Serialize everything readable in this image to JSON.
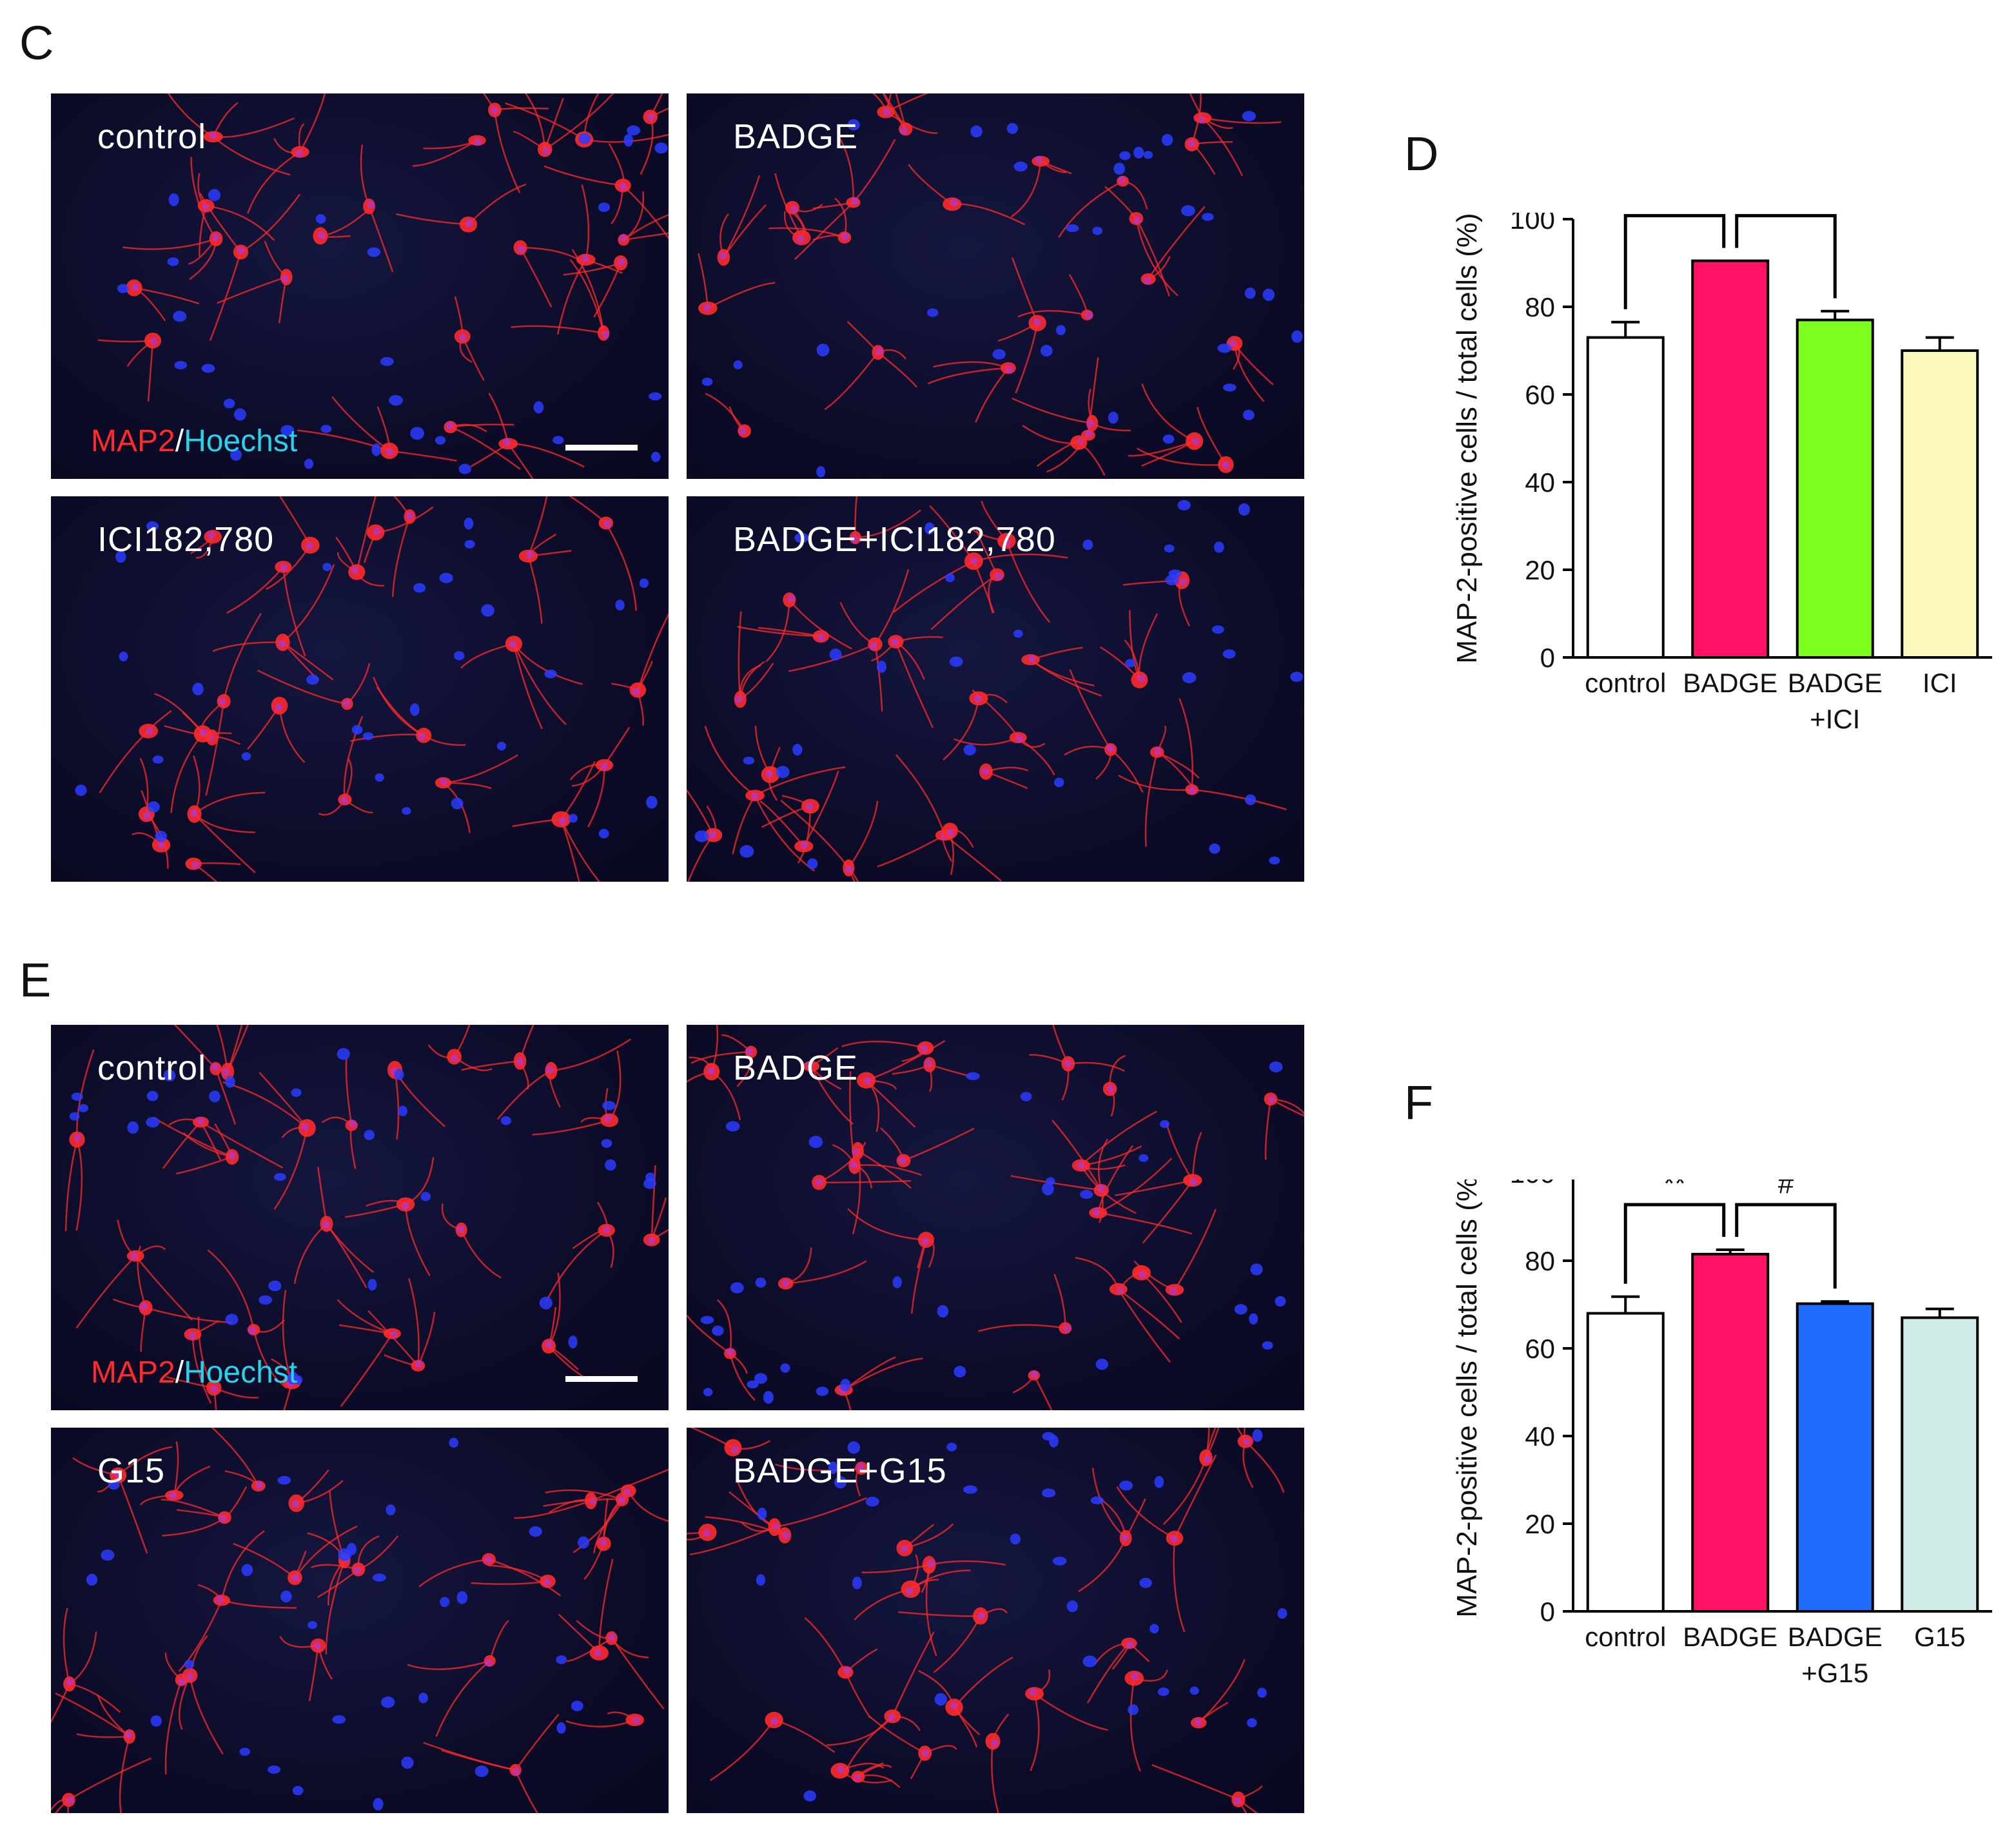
{
  "panel_letters": {
    "C": "C",
    "D": "D",
    "E": "E",
    "F": "F"
  },
  "colors": {
    "background": "#ffffff",
    "micro_background": "#0c0c2a",
    "map2_red": "#ff2a2a",
    "hoechst_blue": "#2a3cff",
    "hoechst_label_cyan": "#27d3e8",
    "bar_control": "#ffffff",
    "bar_badge": "#ff1166",
    "bar_badge_ici": "#7cff1e",
    "bar_ici": "#fbf8bd",
    "bar_badge_g15": "#1f6cff",
    "bar_g15": "#cfece8"
  },
  "panel_c": {
    "images": [
      {
        "label": "control",
        "stain_red": "MAP2",
        "stain_sep": "/",
        "stain_cyan": "Hoechst",
        "has_scale_bar": true
      },
      {
        "label": "BADGE"
      },
      {
        "label": "ICI182,780"
      },
      {
        "label": "BADGE+ICI182,780"
      }
    ]
  },
  "panel_e": {
    "images": [
      {
        "label": "control",
        "stain_red": "MAP2",
        "stain_sep": "/",
        "stain_cyan": "Hoechst",
        "has_scale_bar": true
      },
      {
        "label": "BADGE"
      },
      {
        "label": "G15"
      },
      {
        "label": "BADGE+G15"
      }
    ]
  },
  "chart_data": [
    {
      "panel": "D",
      "type": "bar",
      "categories": [
        [
          "control"
        ],
        [
          "BADGE"
        ],
        [
          "BADGE",
          "+ICI"
        ],
        [
          "ICI"
        ]
      ],
      "values": [
        73,
        90.5,
        77,
        70
      ],
      "errors": [
        3.5,
        0,
        2,
        3
      ],
      "bar_colors": [
        "#ffffff",
        "#ff1166",
        "#7cff1e",
        "#fbf8bd"
      ],
      "ylabel": "MAP-2-positive cells / total cells (%)",
      "ylim": [
        0,
        100
      ],
      "yticks": [
        0,
        20,
        40,
        60,
        80,
        100
      ],
      "significance": [
        {
          "from": 0,
          "to": 1,
          "label": "**"
        },
        {
          "from": 1,
          "to": 2,
          "label": "##"
        }
      ],
      "grid": false
    },
    {
      "panel": "F",
      "type": "bar",
      "categories": [
        [
          "control"
        ],
        [
          "BADGE"
        ],
        [
          "BADGE",
          "+G15"
        ],
        [
          "G15"
        ]
      ],
      "values": [
        68,
        81.5,
        70.2,
        67
      ],
      "errors": [
        3.8,
        1,
        0.5,
        2
      ],
      "bar_colors": [
        "#ffffff",
        "#ff1166",
        "#1f6cff",
        "#cfece8"
      ],
      "ylabel": "MAP-2-positive cells / total cells (%)",
      "ylim": [
        0,
        100
      ],
      "yticks": [
        0,
        20,
        40,
        60,
        80,
        100
      ],
      "significance": [
        {
          "from": 0,
          "to": 1,
          "label": "**"
        },
        {
          "from": 1,
          "to": 2,
          "label": "#"
        }
      ],
      "grid": false
    }
  ]
}
